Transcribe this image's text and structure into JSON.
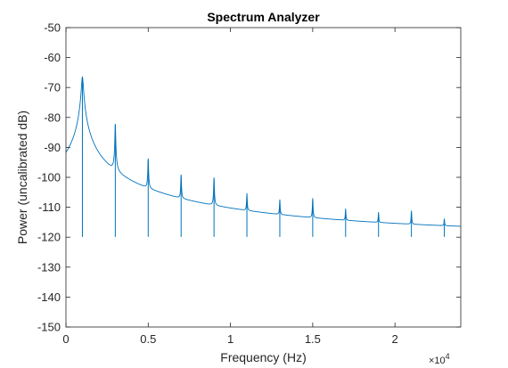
{
  "chart_data": {
    "type": "line",
    "title": "Spectrum Analyzer",
    "xlabel": "Frequency (Hz)",
    "ylabel": "Power (uncalibrated dB)",
    "xlim": [
      0,
      24000
    ],
    "ylim": [
      -150,
      -50
    ],
    "x_multiplier": "×10",
    "x_multiplier_exponent": "4",
    "x_ticks": [
      {
        "value": 0,
        "label": "0"
      },
      {
        "value": 5000,
        "label": "0.5"
      },
      {
        "value": 10000,
        "label": "1"
      },
      {
        "value": 15000,
        "label": "1.5"
      },
      {
        "value": 20000,
        "label": "2"
      }
    ],
    "y_ticks": [
      {
        "value": -50,
        "label": "-50"
      },
      {
        "value": -60,
        "label": "-60"
      },
      {
        "value": -70,
        "label": "-70"
      },
      {
        "value": -80,
        "label": "-80"
      },
      {
        "value": -90,
        "label": "-90"
      },
      {
        "value": -100,
        "label": "-100"
      },
      {
        "value": -110,
        "label": "-110"
      },
      {
        "value": -120,
        "label": "-120"
      },
      {
        "value": -130,
        "label": "-130"
      },
      {
        "value": -140,
        "label": "-140"
      },
      {
        "value": -150,
        "label": "-150"
      }
    ],
    "grid": false,
    "series": [
      {
        "color": "#0072bd",
        "x": [
          0,
          1000,
          2000,
          3000,
          4000,
          5000,
          6000,
          7000,
          8000,
          9000,
          10000,
          11000,
          12000,
          13000,
          14000,
          15000,
          16000,
          17000,
          18000,
          19000,
          20000,
          21000,
          22000,
          23000,
          24000
        ],
        "values": [
          -117,
          -66.5,
          -119.7,
          -82.3,
          -119.8,
          -94.2,
          -119.8,
          -99.8,
          -119.9,
          -100.6,
          -119.9,
          -106.5,
          -119.9,
          -108.7,
          -119.9,
          -107.8,
          -119.9,
          -112,
          -119.9,
          -113.2,
          -119.9,
          -112.2,
          -119.9,
          -115.6,
          -119.9
        ],
        "peaks": [
          {
            "x": 1000,
            "y": -66.5
          },
          {
            "x": 3000,
            "y": -82.3
          },
          {
            "x": 5000,
            "y": -94.2
          },
          {
            "x": 7000,
            "y": -99.8
          },
          {
            "x": 9000,
            "y": -100.6
          },
          {
            "x": 11000,
            "y": -106.5
          },
          {
            "x": 13000,
            "y": -108.7
          },
          {
            "x": 15000,
            "y": -107.8
          },
          {
            "x": 17000,
            "y": -112
          },
          {
            "x": 19000,
            "y": -113.2
          },
          {
            "x": 21000,
            "y": -112.2
          },
          {
            "x": 23000,
            "y": -115.6
          }
        ],
        "noise_floor": -119.9
      }
    ]
  }
}
